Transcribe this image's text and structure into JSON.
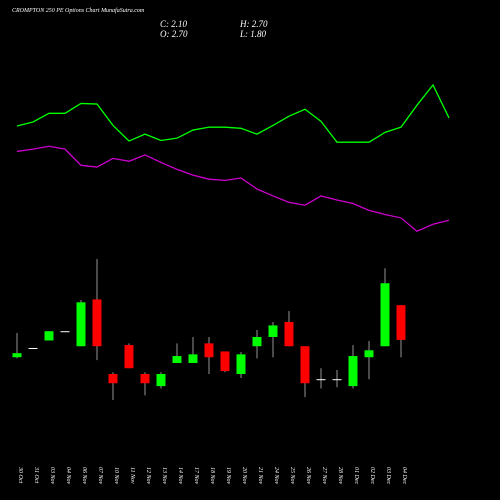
{
  "chart_data": {
    "type": "candlestick",
    "title": "CROMPTON 250 PE Options Chart MunafaSutra.com",
    "ohlc_text": {
      "close": "C: 2.10",
      "high": "H: 2.70",
      "open": "O: 2.70",
      "low": "L: 1.80"
    },
    "categories": [
      "30 Oct",
      "31 Oct",
      "03 Nov",
      "04 Nov",
      "06 Nov",
      "07 Nov",
      "10 Nov",
      "11 Nov",
      "12 Nov",
      "13 Nov",
      "14 Nov",
      "17 Nov",
      "18 Nov",
      "19 Nov",
      "20 Nov",
      "21 Nov",
      "24 Nov",
      "25 Nov",
      "26 Nov",
      "27 Nov",
      "28 Nov",
      "01 Dec",
      "02 Dec",
      "03 Dec",
      "04 Dec",
      null,
      null,
      null
    ],
    "open": [
      1.8,
      1.96,
      2.09,
      2.25,
      1.99,
      2.8,
      1.51,
      2.01,
      1.51,
      1.3,
      1.7,
      1.7,
      2.04,
      1.9,
      1.51,
      1.99,
      2.15,
      2.41,
      1.99,
      1.42,
      1.42,
      1.3,
      1.8,
      1.99,
      2.7,
      null,
      null,
      null
    ],
    "high": [
      2.22,
      1.96,
      2.25,
      2.25,
      2.79,
      3.5,
      1.54,
      2.04,
      1.54,
      1.54,
      2.04,
      2.15,
      2.15,
      1.9,
      1.89,
      2.27,
      2.41,
      2.6,
      1.99,
      1.61,
      1.58,
      2.01,
      2.08,
      3.34,
      2.7,
      null,
      null,
      null
    ],
    "low": [
      1.78,
      1.96,
      2.09,
      2.25,
      1.99,
      1.75,
      1.06,
      1.61,
      1.14,
      1.26,
      1.7,
      1.7,
      1.51,
      1.54,
      1.44,
      1.78,
      1.8,
      1.99,
      1.11,
      1.26,
      1.28,
      1.26,
      1.42,
      1.99,
      1.8,
      null,
      null,
      null
    ],
    "close": [
      1.87,
      1.96,
      2.25,
      2.25,
      2.75,
      1.99,
      1.35,
      1.61,
      1.35,
      1.51,
      1.82,
      1.85,
      1.8,
      1.56,
      1.85,
      2.15,
      2.35,
      1.99,
      1.35,
      1.42,
      1.42,
      1.82,
      1.92,
      3.08,
      2.1,
      null,
      null,
      null
    ],
    "up_color": "#00ff00",
    "down_color": "#ff0000",
    "wick_color": "#bbbbbb",
    "series": [
      {
        "color": "#00ff00",
        "values": [
          5.8,
          5.87,
          6.02,
          6.02,
          6.19,
          6.18,
          5.81,
          5.54,
          5.66,
          5.55,
          5.59,
          5.73,
          5.78,
          5.78,
          5.76,
          5.66,
          5.81,
          5.97,
          6.09,
          5.88,
          5.52,
          5.52,
          5.52,
          5.69,
          5.78,
          6.16,
          6.51,
          5.94
        ]
      },
      {
        "color": "#cc00cc",
        "values": [
          5.36,
          5.4,
          5.45,
          5.4,
          5.12,
          5.09,
          5.24,
          5.19,
          5.3,
          5.17,
          5.05,
          4.95,
          4.88,
          4.86,
          4.9,
          4.71,
          4.59,
          4.48,
          4.43,
          4.59,
          4.52,
          4.46,
          4.34,
          4.27,
          4.21,
          3.98,
          4.1,
          4.17
        ]
      }
    ],
    "ylim": [
      -0.67,
      7.98
    ]
  }
}
